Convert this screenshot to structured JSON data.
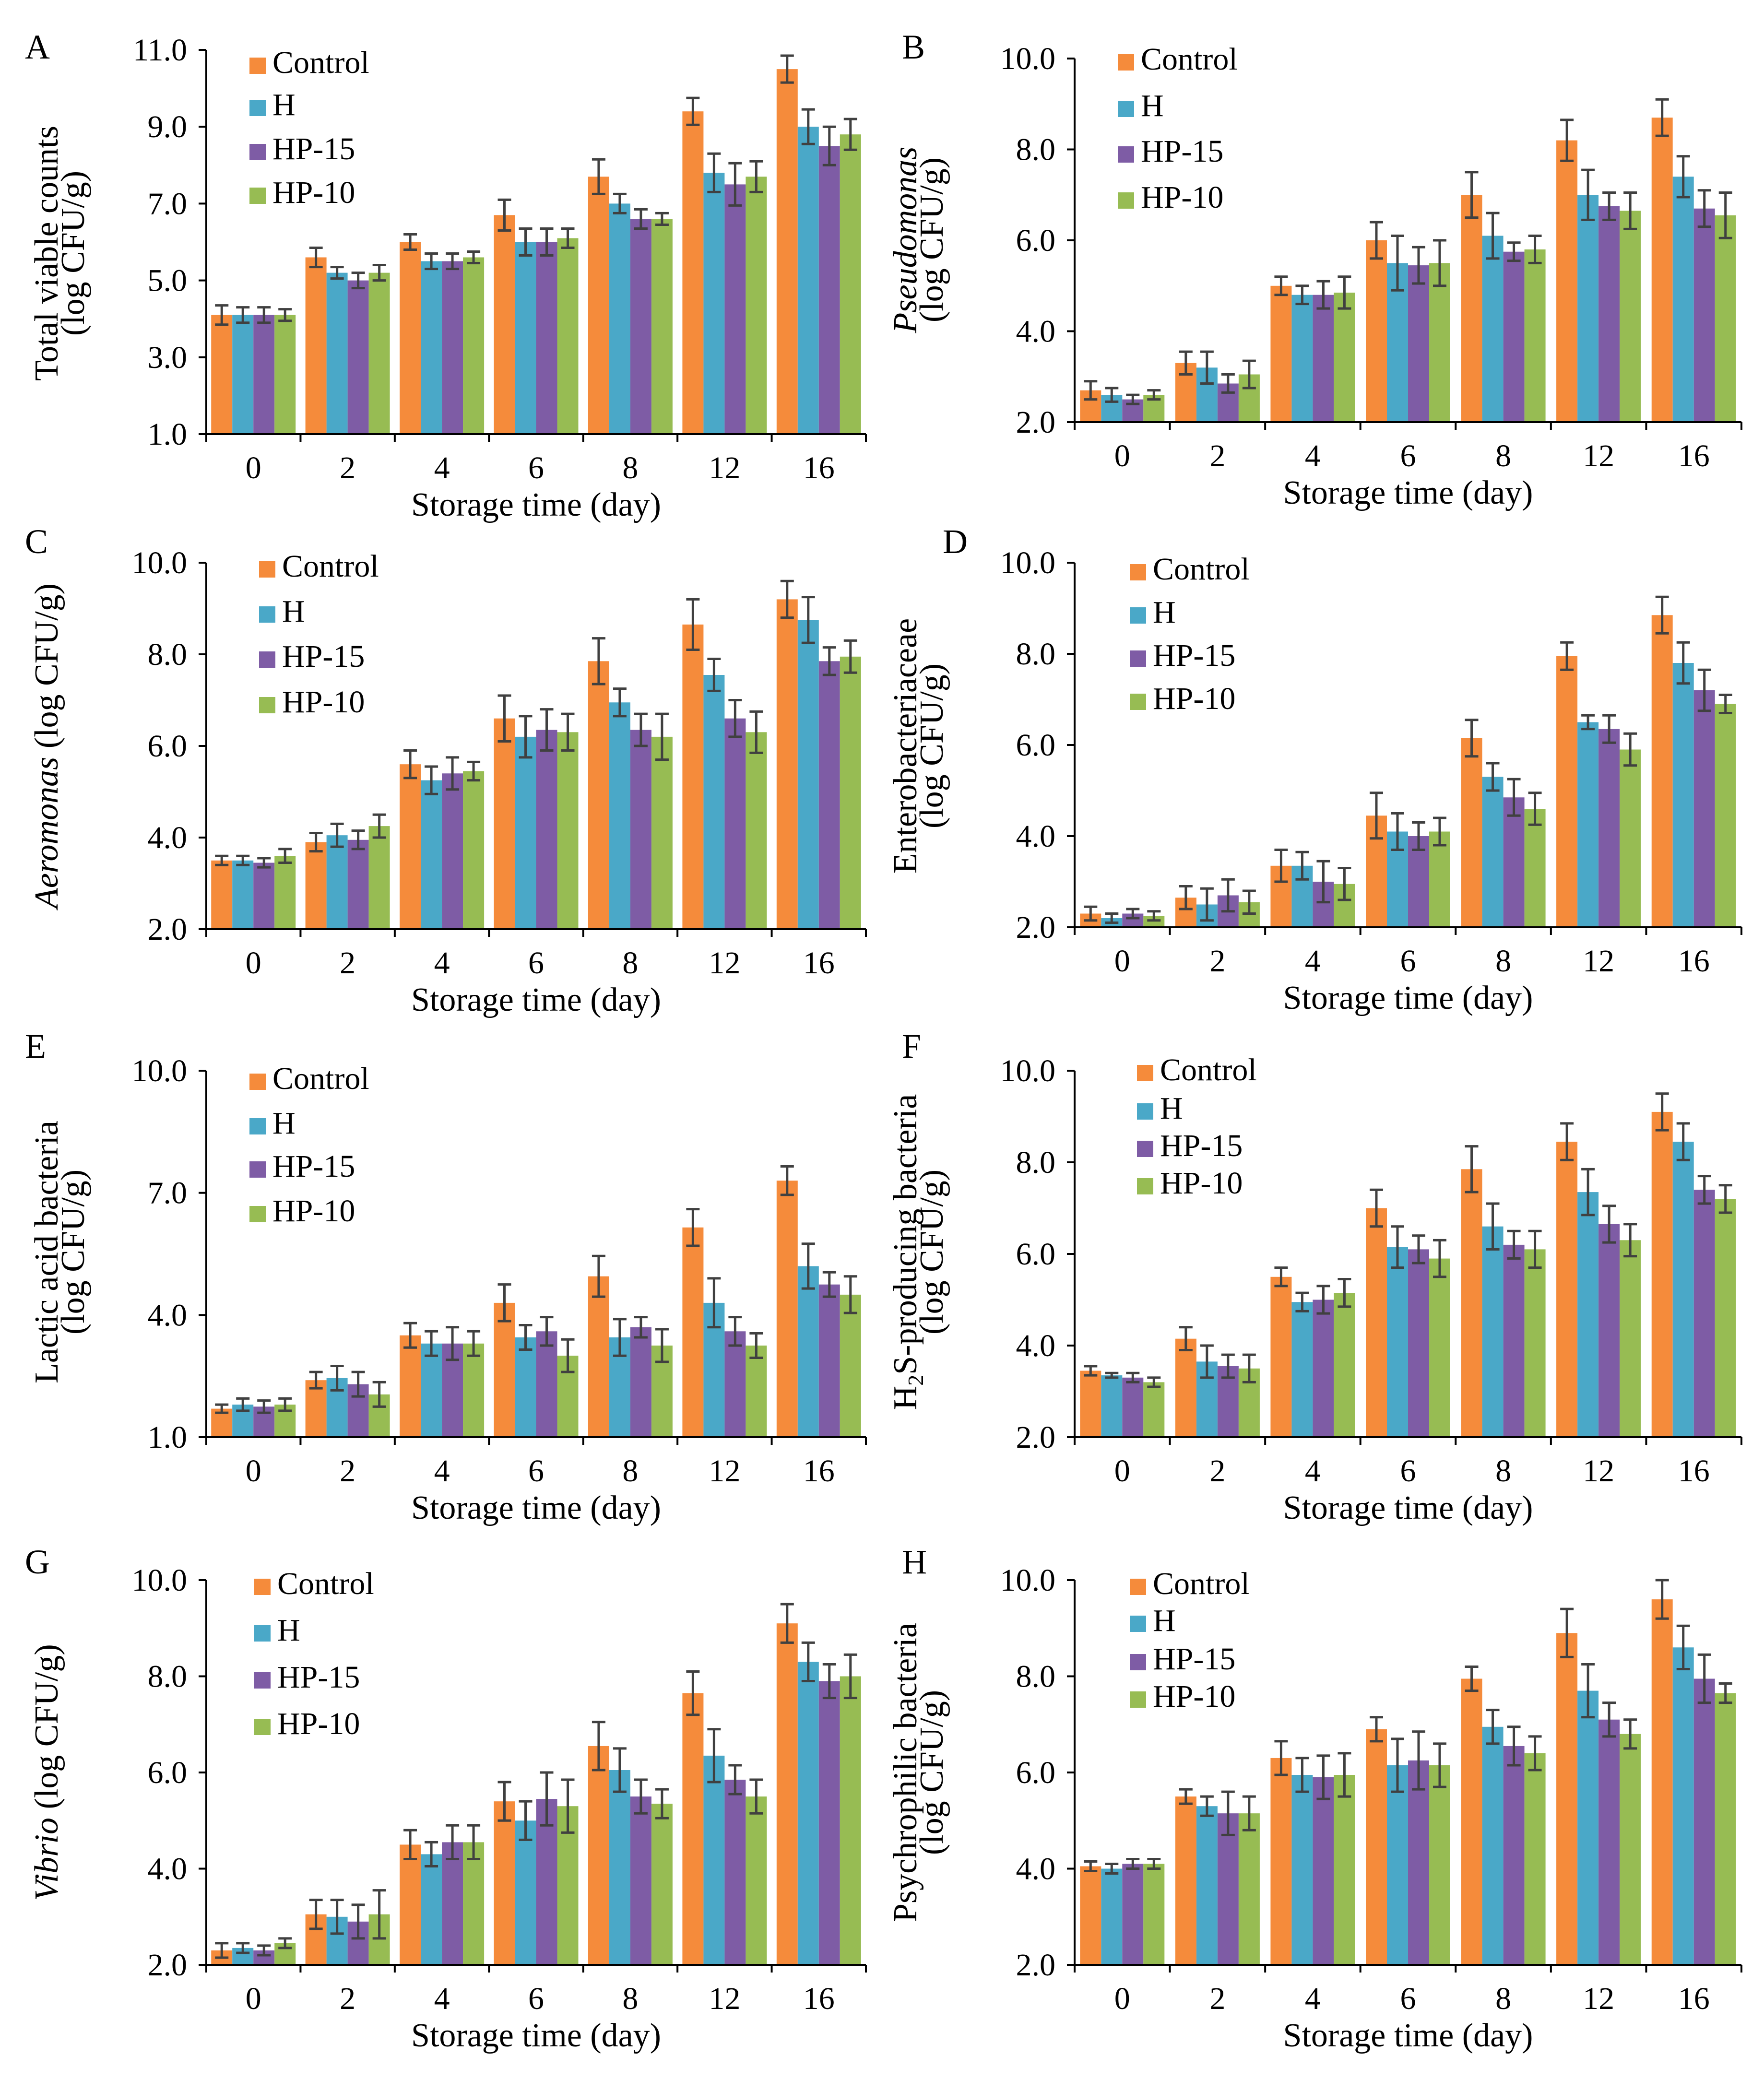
{
  "colors": {
    "Control": "#F58B3B",
    "H": "#4AA8C8",
    "HP-15": "#7E5CA5",
    "HP-10": "#97BC53",
    "error_bar": "#404040",
    "axis": "#000000"
  },
  "chart_data": [
    {
      "type": "bar",
      "panel": "A",
      "ylabel_lines": [
        [
          {
            "t": "Total viable counts"
          }
        ],
        [
          {
            "t": "(log CFU/g)"
          }
        ]
      ],
      "xlabel": "Storage time (day)",
      "categories": [
        "0",
        "2",
        "4",
        "6",
        "8",
        "12",
        "16"
      ],
      "ylim": [
        1.0,
        11.0
      ],
      "yticks": [
        "1.0",
        "3.0",
        "5.0",
        "7.0",
        "9.0",
        "11.0"
      ],
      "series": [
        {
          "name": "Control",
          "values": [
            4.1,
            5.6,
            6.0,
            6.7,
            7.7,
            9.4,
            10.5
          ],
          "errors": [
            0.25,
            0.25,
            0.2,
            0.4,
            0.45,
            0.35,
            0.35
          ]
        },
        {
          "name": "H",
          "values": [
            4.1,
            5.2,
            5.5,
            6.0,
            7.0,
            7.8,
            9.0
          ],
          "errors": [
            0.2,
            0.15,
            0.2,
            0.35,
            0.25,
            0.5,
            0.45
          ]
        },
        {
          "name": "HP-15",
          "values": [
            4.1,
            5.0,
            5.5,
            6.0,
            6.6,
            7.5,
            8.5
          ],
          "errors": [
            0.2,
            0.2,
            0.2,
            0.35,
            0.25,
            0.55,
            0.5
          ]
        },
        {
          "name": "HP-10",
          "values": [
            4.1,
            5.2,
            5.6,
            6.1,
            6.6,
            7.7,
            8.8
          ],
          "errors": [
            0.15,
            0.2,
            0.15,
            0.25,
            0.15,
            0.4,
            0.4
          ]
        }
      ]
    },
    {
      "type": "bar",
      "panel": "B",
      "ylabel_lines": [
        [
          {
            "t": "Pseudomonas",
            "i": true
          }
        ],
        [
          {
            "t": "(log CFU/g)"
          }
        ]
      ],
      "xlabel": "Storage time (day)",
      "categories": [
        "0",
        "2",
        "4",
        "6",
        "8",
        "12",
        "16"
      ],
      "ylim": [
        2.0,
        10.0
      ],
      "yticks": [
        "2.0",
        "4.0",
        "6.0",
        "8.0",
        "10.0"
      ],
      "series": [
        {
          "name": "Control",
          "values": [
            2.7,
            3.3,
            5.0,
            6.0,
            7.0,
            8.2,
            8.7
          ],
          "errors": [
            0.2,
            0.25,
            0.2,
            0.4,
            0.5,
            0.45,
            0.4
          ]
        },
        {
          "name": "H",
          "values": [
            2.6,
            3.2,
            4.8,
            5.5,
            6.1,
            7.0,
            7.4
          ],
          "errors": [
            0.15,
            0.35,
            0.2,
            0.6,
            0.5,
            0.55,
            0.45
          ]
        },
        {
          "name": "HP-15",
          "values": [
            2.5,
            2.85,
            4.8,
            5.45,
            5.75,
            6.75,
            6.7
          ],
          "errors": [
            0.1,
            0.2,
            0.3,
            0.4,
            0.2,
            0.3,
            0.4
          ]
        },
        {
          "name": "HP-10",
          "values": [
            2.6,
            3.05,
            4.85,
            5.5,
            5.8,
            6.65,
            6.55
          ],
          "errors": [
            0.1,
            0.3,
            0.35,
            0.5,
            0.3,
            0.4,
            0.5
          ]
        }
      ]
    },
    {
      "type": "bar",
      "panel": "C",
      "ylabel_lines": [
        [
          {
            "t": "Aeromonas",
            "i": true
          },
          {
            "t": " (log CFU/g)"
          }
        ]
      ],
      "xlabel": "Storage time (day)",
      "categories": [
        "0",
        "2",
        "4",
        "6",
        "8",
        "12",
        "16"
      ],
      "ylim": [
        2.0,
        10.0
      ],
      "yticks": [
        "2.0",
        "4.0",
        "6.0",
        "8.0",
        "10.0"
      ],
      "series": [
        {
          "name": "Control",
          "values": [
            3.5,
            3.9,
            5.6,
            6.6,
            7.85,
            8.65,
            9.2
          ],
          "errors": [
            0.1,
            0.2,
            0.3,
            0.5,
            0.5,
            0.55,
            0.4
          ]
        },
        {
          "name": "H",
          "values": [
            3.5,
            4.05,
            5.25,
            6.2,
            6.95,
            7.55,
            8.75
          ],
          "errors": [
            0.1,
            0.25,
            0.3,
            0.45,
            0.3,
            0.35,
            0.5
          ]
        },
        {
          "name": "HP-15",
          "values": [
            3.45,
            3.95,
            5.4,
            6.35,
            6.35,
            6.6,
            7.85
          ],
          "errors": [
            0.1,
            0.2,
            0.35,
            0.45,
            0.35,
            0.4,
            0.3
          ]
        },
        {
          "name": "HP-10",
          "values": [
            3.6,
            4.25,
            5.45,
            6.3,
            6.2,
            6.3,
            7.95
          ],
          "errors": [
            0.15,
            0.25,
            0.2,
            0.4,
            0.5,
            0.45,
            0.35
          ]
        }
      ]
    },
    {
      "type": "bar",
      "panel": "D",
      "ylabel_lines": [
        [
          {
            "t": "Enterobacteriaceae"
          }
        ],
        [
          {
            "t": "(log CFU/g)"
          }
        ]
      ],
      "xlabel": "Storage time (day)",
      "categories": [
        "0",
        "2",
        "4",
        "6",
        "8",
        "12",
        "16"
      ],
      "ylim": [
        2.0,
        10.0
      ],
      "yticks": [
        "2.0",
        "4.0",
        "6.0",
        "8.0",
        "10.0"
      ],
      "series": [
        {
          "name": "Control",
          "values": [
            2.3,
            2.65,
            3.35,
            4.45,
            6.15,
            7.95,
            8.85
          ],
          "errors": [
            0.15,
            0.25,
            0.35,
            0.5,
            0.4,
            0.3,
            0.4
          ]
        },
        {
          "name": "H",
          "values": [
            2.2,
            2.5,
            3.35,
            4.1,
            5.3,
            6.5,
            7.8
          ],
          "errors": [
            0.1,
            0.35,
            0.3,
            0.4,
            0.3,
            0.15,
            0.45
          ]
        },
        {
          "name": "HP-15",
          "values": [
            2.3,
            2.7,
            3.0,
            4.0,
            4.85,
            6.35,
            7.2
          ],
          "errors": [
            0.1,
            0.35,
            0.45,
            0.3,
            0.4,
            0.3,
            0.45
          ]
        },
        {
          "name": "HP-10",
          "values": [
            2.25,
            2.55,
            2.95,
            4.1,
            4.6,
            5.9,
            6.9
          ],
          "errors": [
            0.1,
            0.25,
            0.35,
            0.3,
            0.35,
            0.35,
            0.2
          ]
        }
      ]
    },
    {
      "type": "bar",
      "panel": "E",
      "ylabel_lines": [
        [
          {
            "t": "Lactic  acid bacteria"
          }
        ],
        [
          {
            "t": "(log CFU/g)"
          }
        ]
      ],
      "xlabel": "Storage time (day)",
      "categories": [
        "0",
        "2",
        "4",
        "6",
        "8",
        "12",
        "16"
      ],
      "ylim": [
        1.0,
        10.0
      ],
      "yticks": [
        "1.0",
        "4.0",
        "7.0",
        "10.0"
      ],
      "series": [
        {
          "name": "Control",
          "values": [
            1.7,
            2.4,
            3.5,
            4.3,
            4.95,
            6.15,
            7.3
          ],
          "errors": [
            0.1,
            0.2,
            0.3,
            0.45,
            0.5,
            0.45,
            0.35
          ]
        },
        {
          "name": "H",
          "values": [
            1.8,
            2.45,
            3.3,
            3.45,
            3.45,
            4.3,
            5.2
          ],
          "errors": [
            0.15,
            0.3,
            0.3,
            0.3,
            0.45,
            0.6,
            0.55
          ]
        },
        {
          "name": "HP-15",
          "values": [
            1.75,
            2.3,
            3.3,
            3.6,
            3.7,
            3.6,
            4.75
          ],
          "errors": [
            0.15,
            0.3,
            0.4,
            0.35,
            0.25,
            0.35,
            0.3
          ]
        },
        {
          "name": "HP-10",
          "values": [
            1.8,
            2.05,
            3.3,
            3.0,
            3.25,
            3.25,
            4.5
          ],
          "errors": [
            0.15,
            0.3,
            0.3,
            0.4,
            0.4,
            0.3,
            0.45
          ]
        }
      ]
    },
    {
      "type": "bar",
      "panel": "F",
      "ylabel_lines": [
        [
          {
            "t": "H"
          },
          {
            "t": "2",
            "sub": true
          },
          {
            "t": "S-producing bacteria"
          }
        ],
        [
          {
            "t": "(log CFU/g)"
          }
        ]
      ],
      "xlabel": "Storage time (day)",
      "categories": [
        "0",
        "2",
        "4",
        "6",
        "8",
        "12",
        "16"
      ],
      "ylim": [
        2.0,
        10.0
      ],
      "yticks": [
        "2.0",
        "4.0",
        "6.0",
        "8.0",
        "10.0"
      ],
      "series": [
        {
          "name": "Control",
          "values": [
            3.45,
            4.15,
            5.5,
            7.0,
            7.85,
            8.45,
            9.1
          ],
          "errors": [
            0.1,
            0.25,
            0.2,
            0.4,
            0.5,
            0.4,
            0.4
          ]
        },
        {
          "name": "H",
          "values": [
            3.35,
            3.65,
            4.95,
            6.15,
            6.6,
            7.35,
            8.45
          ],
          "errors": [
            0.05,
            0.35,
            0.2,
            0.45,
            0.5,
            0.5,
            0.4
          ]
        },
        {
          "name": "HP-15",
          "values": [
            3.3,
            3.55,
            5.0,
            6.1,
            6.2,
            6.65,
            7.4
          ],
          "errors": [
            0.1,
            0.25,
            0.3,
            0.3,
            0.3,
            0.4,
            0.3
          ]
        },
        {
          "name": "HP-10",
          "values": [
            3.2,
            3.5,
            5.15,
            5.9,
            6.1,
            6.3,
            7.2
          ],
          "errors": [
            0.1,
            0.3,
            0.3,
            0.4,
            0.4,
            0.35,
            0.3
          ]
        }
      ]
    },
    {
      "type": "bar",
      "panel": "G",
      "ylabel_lines": [
        [
          {
            "t": "Vibrio",
            "i": true
          },
          {
            "t": " (log CFU/g)"
          }
        ]
      ],
      "xlabel": "Storage time (day)",
      "categories": [
        "0",
        "2",
        "4",
        "6",
        "8",
        "12",
        "16"
      ],
      "ylim": [
        2.0,
        10.0
      ],
      "yticks": [
        "2.0",
        "4.0",
        "6.0",
        "8.0",
        "10.0"
      ],
      "series": [
        {
          "name": "Control",
          "values": [
            2.3,
            3.05,
            4.5,
            5.4,
            6.55,
            7.65,
            9.1
          ],
          "errors": [
            0.15,
            0.3,
            0.3,
            0.4,
            0.5,
            0.45,
            0.4
          ]
        },
        {
          "name": "H",
          "values": [
            2.35,
            3.0,
            4.3,
            5.0,
            6.05,
            6.35,
            8.3
          ],
          "errors": [
            0.1,
            0.35,
            0.25,
            0.4,
            0.45,
            0.55,
            0.4
          ]
        },
        {
          "name": "HP-15",
          "values": [
            2.3,
            2.9,
            4.55,
            5.45,
            5.5,
            5.85,
            7.9
          ],
          "errors": [
            0.1,
            0.35,
            0.35,
            0.55,
            0.35,
            0.3,
            0.35
          ]
        },
        {
          "name": "HP-10",
          "values": [
            2.45,
            3.05,
            4.55,
            5.3,
            5.35,
            5.5,
            8.0
          ],
          "errors": [
            0.1,
            0.5,
            0.35,
            0.55,
            0.3,
            0.35,
            0.45
          ]
        }
      ]
    },
    {
      "type": "bar",
      "panel": "H",
      "ylabel_lines": [
        [
          {
            "t": "Psychrophilic bacteria"
          }
        ],
        [
          {
            "t": "(log CFU/g)"
          }
        ]
      ],
      "xlabel": "Storage time (day)",
      "categories": [
        "0",
        "2",
        "4",
        "6",
        "8",
        "12",
        "16"
      ],
      "ylim": [
        2.0,
        10.0
      ],
      "yticks": [
        "2.0",
        "4.0",
        "6.0",
        "8.0",
        "10.0"
      ],
      "series": [
        {
          "name": "Control",
          "values": [
            4.05,
            5.5,
            6.3,
            6.9,
            7.95,
            8.9,
            9.6
          ],
          "errors": [
            0.1,
            0.15,
            0.35,
            0.25,
            0.25,
            0.5,
            0.4
          ]
        },
        {
          "name": "H",
          "values": [
            4.0,
            5.3,
            5.95,
            6.15,
            6.95,
            7.7,
            8.6
          ],
          "errors": [
            0.1,
            0.2,
            0.35,
            0.55,
            0.35,
            0.55,
            0.45
          ]
        },
        {
          "name": "HP-15",
          "values": [
            4.1,
            5.15,
            5.9,
            6.25,
            6.55,
            7.1,
            7.95
          ],
          "errors": [
            0.1,
            0.45,
            0.45,
            0.6,
            0.4,
            0.35,
            0.5
          ]
        },
        {
          "name": "HP-10",
          "values": [
            4.1,
            5.15,
            5.95,
            6.15,
            6.4,
            6.8,
            7.65
          ],
          "errors": [
            0.1,
            0.35,
            0.45,
            0.45,
            0.35,
            0.3,
            0.2
          ]
        }
      ]
    }
  ]
}
